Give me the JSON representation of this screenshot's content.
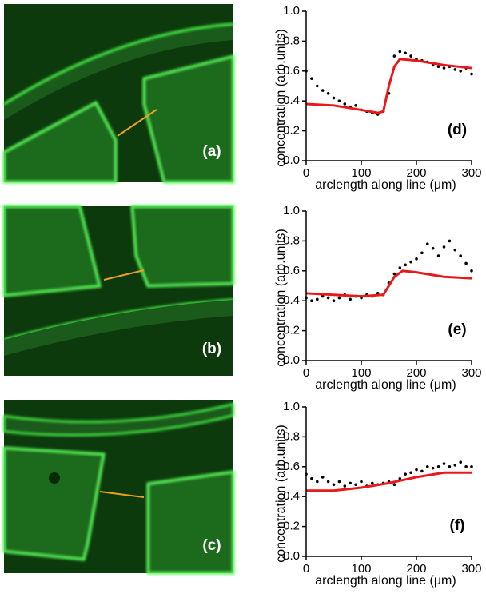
{
  "images": [
    {
      "label": "(a)"
    },
    {
      "label": "(b)"
    },
    {
      "label": "(c)"
    }
  ],
  "chart_data": [
    {
      "type": "scatter",
      "annotation": "(d)",
      "xlabel": "arclength along line (μm)",
      "ylabel": "concentration (arb.units)",
      "xlim": [
        0,
        300
      ],
      "xticks": [
        0,
        100,
        200,
        300
      ],
      "ylim": [
        0,
        1
      ],
      "yticks": [
        {
          "value": 0,
          "label": "0.0"
        },
        0.2,
        0.4,
        0.6,
        0.8,
        {
          "value": 1,
          "label": "1.0"
        }
      ],
      "series": [
        {
          "kind": "points",
          "color": "#000000",
          "x": [
            0,
            10,
            20,
            30,
            40,
            50,
            60,
            70,
            80,
            90,
            100,
            110,
            120,
            130,
            140,
            150,
            160,
            170,
            180,
            190,
            200,
            210,
            220,
            230,
            240,
            250,
            260,
            270,
            280,
            290,
            300
          ],
          "values": [
            0.6,
            0.55,
            0.5,
            0.47,
            0.45,
            0.42,
            0.4,
            0.38,
            0.36,
            0.37,
            0.34,
            0.33,
            0.32,
            0.31,
            0.33,
            0.45,
            0.7,
            0.73,
            0.72,
            0.7,
            0.68,
            0.67,
            0.66,
            0.64,
            0.63,
            0.62,
            0.63,
            0.61,
            0.6,
            0.62,
            0.58
          ]
        },
        {
          "kind": "line",
          "color": "#e8191b",
          "x": [
            0,
            50,
            100,
            130,
            140,
            150,
            160,
            170,
            200,
            250,
            300
          ],
          "values": [
            0.38,
            0.37,
            0.34,
            0.32,
            0.33,
            0.5,
            0.63,
            0.68,
            0.67,
            0.64,
            0.62
          ]
        }
      ]
    },
    {
      "type": "scatter",
      "annotation": "(e)",
      "xlabel": "arclength along line (μm)",
      "ylabel": "concentration (arb.units)",
      "xlim": [
        0,
        300
      ],
      "xticks": [
        0,
        100,
        200,
        300
      ],
      "ylim": [
        0,
        1
      ],
      "yticks": [
        {
          "value": 0,
          "label": "0.0"
        },
        0.2,
        0.4,
        0.6,
        0.8,
        {
          "value": 1,
          "label": "1.0"
        }
      ],
      "series": [
        {
          "kind": "points",
          "color": "#000000",
          "x": [
            0,
            10,
            20,
            30,
            40,
            50,
            60,
            70,
            80,
            90,
            100,
            110,
            120,
            130,
            140,
            150,
            160,
            170,
            180,
            190,
            200,
            210,
            220,
            230,
            240,
            250,
            260,
            270,
            280,
            290,
            300
          ],
          "values": [
            0.42,
            0.4,
            0.41,
            0.43,
            0.42,
            0.4,
            0.42,
            0.44,
            0.41,
            0.43,
            0.42,
            0.44,
            0.43,
            0.45,
            0.44,
            0.52,
            0.58,
            0.62,
            0.64,
            0.66,
            0.68,
            0.72,
            0.78,
            0.75,
            0.7,
            0.76,
            0.8,
            0.74,
            0.7,
            0.65,
            0.6
          ]
        },
        {
          "kind": "line",
          "color": "#e8191b",
          "x": [
            0,
            50,
            100,
            140,
            150,
            160,
            175,
            200,
            250,
            300
          ],
          "values": [
            0.45,
            0.44,
            0.43,
            0.44,
            0.5,
            0.56,
            0.6,
            0.59,
            0.56,
            0.55
          ]
        }
      ]
    },
    {
      "type": "scatter",
      "annotation": "(f)",
      "xlabel": "arclength along line (μm)",
      "ylabel": "concentration (arb.units)",
      "xlim": [
        0,
        300
      ],
      "xticks": [
        0,
        100,
        200,
        300
      ],
      "ylim": [
        0,
        1
      ],
      "yticks": [
        {
          "value": 0,
          "label": "0.0"
        },
        0.2,
        0.4,
        0.6,
        0.8,
        {
          "value": 1,
          "label": "1.0"
        }
      ],
      "series": [
        {
          "kind": "points",
          "color": "#000000",
          "x": [
            0,
            10,
            20,
            30,
            40,
            50,
            60,
            70,
            80,
            90,
            100,
            110,
            120,
            130,
            140,
            150,
            160,
            170,
            180,
            190,
            200,
            210,
            220,
            230,
            240,
            250,
            260,
            270,
            280,
            290,
            300
          ],
          "values": [
            0.55,
            0.52,
            0.5,
            0.53,
            0.5,
            0.48,
            0.5,
            0.47,
            0.49,
            0.48,
            0.5,
            0.47,
            0.49,
            0.48,
            0.49,
            0.5,
            0.48,
            0.52,
            0.55,
            0.56,
            0.58,
            0.57,
            0.6,
            0.59,
            0.6,
            0.62,
            0.6,
            0.61,
            0.63,
            0.6,
            0.6
          ]
        },
        {
          "kind": "line",
          "color": "#e8191b",
          "x": [
            0,
            50,
            100,
            150,
            200,
            250,
            300
          ],
          "values": [
            0.44,
            0.44,
            0.46,
            0.49,
            0.53,
            0.56,
            0.56
          ]
        }
      ]
    }
  ]
}
